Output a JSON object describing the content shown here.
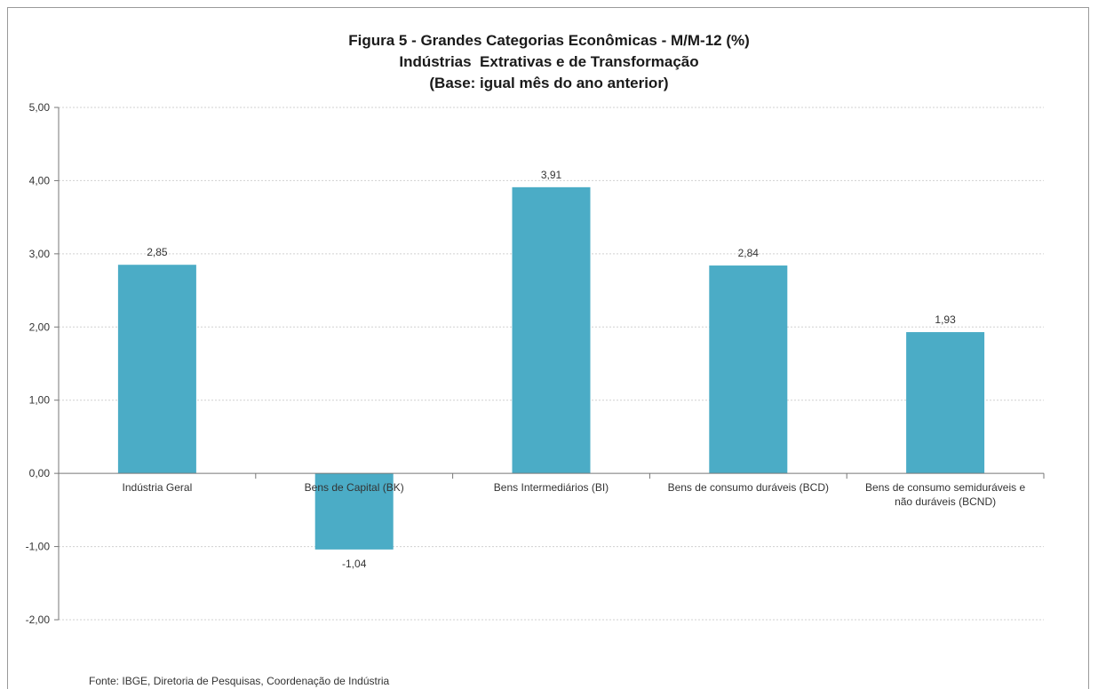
{
  "chart_data": {
    "type": "bar",
    "title": "Figura 5 - Grandes Categorias Econômicas - M/M-12 (%)",
    "subtitle_lines": [
      "Indústrias  Extrativas e de Transformação",
      "(Base: igual mês do ano anterior)"
    ],
    "categories": [
      [
        "Indústria Geral"
      ],
      [
        "Bens de Capital (BK)"
      ],
      [
        "Bens Intermediários (BI)"
      ],
      [
        "Bens de consumo duráveis (BCD)"
      ],
      [
        "Bens de consumo semiduráveis e",
        "não duráveis (BCND)"
      ]
    ],
    "values": [
      2.85,
      -1.04,
      3.91,
      2.84,
      1.93
    ],
    "data_labels": [
      "2,85",
      "-1,04",
      "3,91",
      "2,84",
      "1,93"
    ],
    "ylim": [
      -2,
      5
    ],
    "yticks": [
      5,
      4,
      3,
      2,
      1,
      0,
      -1,
      -2
    ],
    "ytick_labels": [
      "5,00",
      "4,00",
      "3,00",
      "2,00",
      "1,00",
      "0,00",
      "-1,00",
      "-2,00"
    ],
    "grid": true,
    "bar_color": "#4bacc6",
    "source": "Fonte: IBGE, Diretoria de Pesquisas, Coordenação de Indústria"
  }
}
